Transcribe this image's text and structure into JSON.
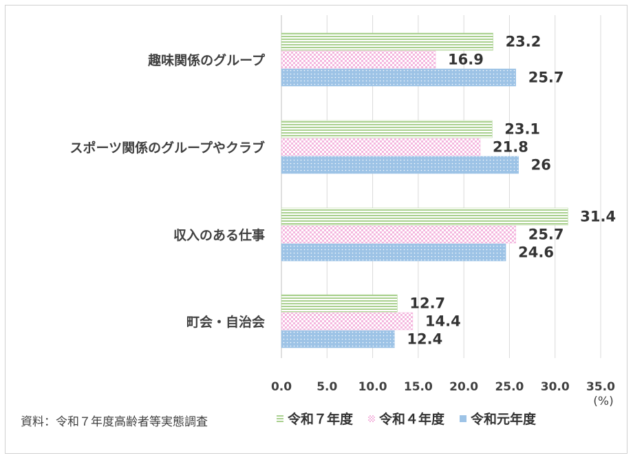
{
  "chart_data": {
    "type": "bar",
    "orientation": "horizontal",
    "categories": [
      "趣味関係のグループ",
      "スポーツ関係のグループやクラブ",
      "収入のある仕事",
      "町会・自治会"
    ],
    "series": [
      {
        "name": "令和７年度",
        "values": [
          23.2,
          23.1,
          31.4,
          12.7
        ],
        "value_labels": [
          "23.2",
          "23.1",
          "31.4",
          "12.7"
        ],
        "color": "#a9d08e",
        "pattern": "horizontal-stripes"
      },
      {
        "name": "令和４年度",
        "values": [
          16.9,
          21.8,
          25.7,
          14.4
        ],
        "value_labels": [
          "16.9",
          "21.8",
          "25.7",
          "14.4"
        ],
        "color": "#f4b6de",
        "pattern": "checker"
      },
      {
        "name": "令和元年度",
        "values": [
          25.7,
          26,
          24.6,
          12.4
        ],
        "value_labels": [
          "25.7",
          "26",
          "24.6",
          "12.4"
        ],
        "color": "#9dc3e6",
        "pattern": "dots"
      }
    ],
    "xlim": [
      0,
      35
    ],
    "xticks": [
      "0.0",
      "5.0",
      "10.0",
      "15.0",
      "20.0",
      "25.0",
      "30.0",
      "35.0"
    ],
    "unit_label": "(%)",
    "grid": true,
    "legend_position": "bottom"
  },
  "source_note": "資料：令和７年度高齢者等実態調査"
}
